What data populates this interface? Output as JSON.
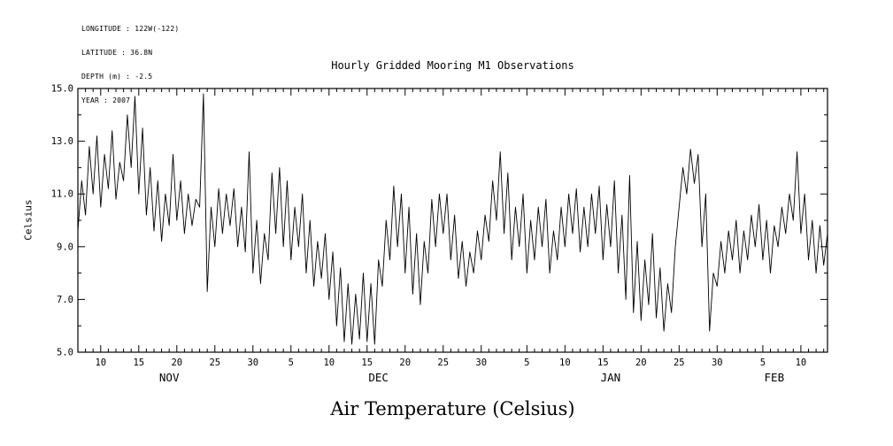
{
  "header": {
    "lines": [
      "LONGITUDE : 122W(-122)",
      "LATITUDE : 36.8N",
      "DEPTH (m) : -2.5",
      "YEAR : 2007"
    ]
  },
  "chart_data": {
    "type": "line",
    "title": "Hourly Gridded Mooring M1 Observations",
    "xlabel": "Air Temperature (Celsius)",
    "ylabel": "Celsius",
    "ylim": [
      5.0,
      15.0
    ],
    "yticks": [
      5.0,
      7.0,
      9.0,
      11.0,
      13.0,
      15.0
    ],
    "y_minor_tick_step": 1.0,
    "grid": false,
    "legend": "none",
    "line_color": "#000000",
    "x_axis": {
      "days_total": 98.5,
      "minor_tick_every_days": 1,
      "ticks": [
        {
          "day": 3,
          "label": "10"
        },
        {
          "day": 8,
          "label": "15"
        },
        {
          "day": 13,
          "label": "20"
        },
        {
          "day": 18,
          "label": "25"
        },
        {
          "day": 23,
          "label": "30"
        },
        {
          "day": 28,
          "label": "5"
        },
        {
          "day": 33,
          "label": "10"
        },
        {
          "day": 38,
          "label": "15"
        },
        {
          "day": 43,
          "label": "20"
        },
        {
          "day": 48,
          "label": "25"
        },
        {
          "day": 53,
          "label": "30"
        },
        {
          "day": 59,
          "label": "5"
        },
        {
          "day": 64,
          "label": "10"
        },
        {
          "day": 69,
          "label": "15"
        },
        {
          "day": 74,
          "label": "20"
        },
        {
          "day": 79,
          "label": "25"
        },
        {
          "day": 84,
          "label": "30"
        },
        {
          "day": 90,
          "label": "5"
        },
        {
          "day": 95,
          "label": "10"
        }
      ],
      "months": [
        {
          "day": 12,
          "label": "NOV"
        },
        {
          "day": 39.5,
          "label": "DEC"
        },
        {
          "day": 70,
          "label": "JAN"
        },
        {
          "day": 91.5,
          "label": "FEB"
        }
      ]
    },
    "series": [
      {
        "name": "Air Temperature (Celsius)",
        "points_per_day": 2,
        "values": [
          9.6,
          11.5,
          10.2,
          12.8,
          11.0,
          13.2,
          10.5,
          12.5,
          11.2,
          13.4,
          10.8,
          12.2,
          11.5,
          14.0,
          12.0,
          14.7,
          11.0,
          13.5,
          10.2,
          12.0,
          9.6,
          11.5,
          9.2,
          11.0,
          9.8,
          12.5,
          10.0,
          11.5,
          9.5,
          11.0,
          9.8,
          10.8,
          10.5,
          14.8,
          7.3,
          10.5,
          9.0,
          11.2,
          9.5,
          11.0,
          9.8,
          11.2,
          9.0,
          10.5,
          8.8,
          12.6,
          8.0,
          10.0,
          7.6,
          9.5,
          8.5,
          11.8,
          9.5,
          12.0,
          9.0,
          11.5,
          8.5,
          10.5,
          9.0,
          11.0,
          8.0,
          10.0,
          7.5,
          9.2,
          7.8,
          9.5,
          7.0,
          8.8,
          6.0,
          8.2,
          5.4,
          7.6,
          5.3,
          7.2,
          5.5,
          8.0,
          5.4,
          7.6,
          5.3,
          8.5,
          7.5,
          10.0,
          8.5,
          11.3,
          9.0,
          11.0,
          8.0,
          10.5,
          7.2,
          9.5,
          6.8,
          9.2,
          8.0,
          10.8,
          9.0,
          11.0,
          9.5,
          11.0,
          8.5,
          10.2,
          7.8,
          9.2,
          7.5,
          8.8,
          8.0,
          9.6,
          8.5,
          10.2,
          9.2,
          11.5,
          10.0,
          12.6,
          9.5,
          11.8,
          8.5,
          10.5,
          9.0,
          11.0,
          8.0,
          10.0,
          8.5,
          10.5,
          9.0,
          10.8,
          8.0,
          9.6,
          8.5,
          10.5,
          9.0,
          11.0,
          9.5,
          11.2,
          8.8,
          10.5,
          9.0,
          11.0,
          9.5,
          11.3,
          8.5,
          10.6,
          9.0,
          11.5,
          8.0,
          10.2,
          7.0,
          11.7,
          6.5,
          9.2,
          6.2,
          8.5,
          6.8,
          9.5,
          6.3,
          8.2,
          5.8,
          7.6,
          6.5,
          9.0,
          10.5,
          12.0,
          11.0,
          12.7,
          11.4,
          12.5,
          9.0,
          11.0,
          5.8,
          8.0,
          7.5,
          9.2,
          8.0,
          9.6,
          8.5,
          10.0,
          8.0,
          9.6,
          8.5,
          10.2,
          9.0,
          10.6,
          8.5,
          10.0,
          8.0,
          9.8,
          9.0,
          10.5,
          9.5,
          11.0,
          10.0,
          12.6,
          9.5,
          11.0,
          8.5,
          10.0,
          8.0,
          9.8,
          8.3,
          9.5
        ]
      }
    ]
  }
}
